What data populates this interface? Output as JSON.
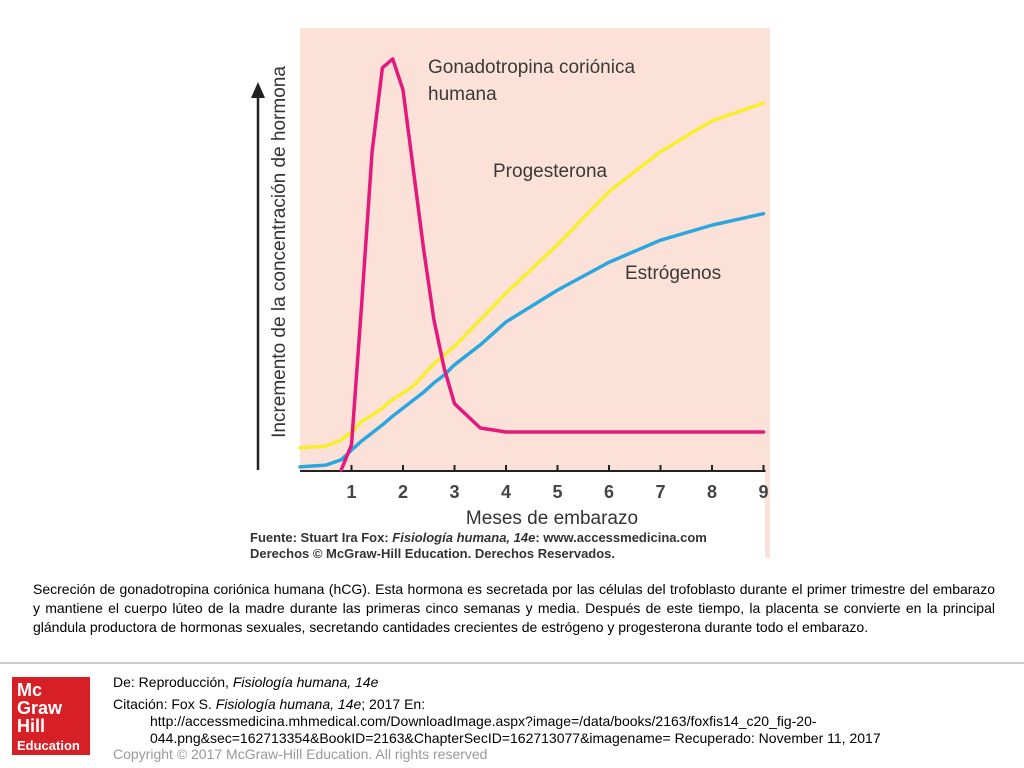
{
  "chart_data": {
    "type": "line",
    "xlabel": "Meses de embarazo",
    "ylabel": "Incremento de la concentración de hormona",
    "x": [
      0,
      0.5,
      0.8,
      1,
      1.2,
      1.4,
      1.6,
      1.8,
      2,
      2.2,
      2.4,
      2.6,
      2.8,
      3,
      3.5,
      4,
      5,
      6,
      7,
      8,
      9
    ],
    "xlim": [
      0,
      9
    ],
    "xticks": [
      1,
      2,
      3,
      4,
      5,
      6,
      7,
      8,
      9
    ],
    "ylim": [
      0,
      100
    ],
    "series": [
      {
        "name": "Gonadotropina coriónica humana",
        "color": "#e5187e",
        "values": [
          null,
          null,
          0,
          5.7,
          38,
          72,
          91,
          93,
          86,
          68,
          50,
          34,
          23,
          15,
          9.5,
          8.6,
          8.6,
          8.6,
          8.6,
          8.6,
          8.6
        ]
      },
      {
        "name": "Progesterona",
        "color": "#f7ee2c",
        "values": [
          5,
          5.4,
          6.8,
          8.6,
          11,
          12.4,
          14,
          16,
          17.4,
          19,
          21.5,
          24,
          26,
          28,
          34,
          40,
          51,
          63,
          72,
          79,
          83
        ]
      },
      {
        "name": "Estrógenos",
        "color": "#2ba6de",
        "values": [
          0.7,
          1.1,
          2.3,
          4.5,
          6.6,
          8.4,
          10.2,
          12.2,
          14,
          15.8,
          17.6,
          19.7,
          21.5,
          23.8,
          28.3,
          33.5,
          40.7,
          47,
          52,
          55.4,
          58
        ]
      }
    ]
  },
  "source": {
    "prefix": "Fuente: Stuart Ira Fox: ",
    "book": "Fisiología humana, 14e",
    "suffix": ": www.accessmedicina.com",
    "rights": "Derechos © McGraw-Hill Education. Derechos Reservados."
  },
  "caption": "Secreción de gonadotropina coriónica humana (hCG). Esta hormona es secretada por las células del trofoblasto durante el primer trimestre del embarazo y mantiene el cuerpo lúteo de la madre durante las primeras cinco semanas y media. Después de este tiempo, la placenta se convierte en la principal glándula productora de hormonas sexuales, secretando cantidades crecientes de estrógeno y progesterona durante todo el embarazo.",
  "footer": {
    "from_prefix": "De: Reproducción, ",
    "from_book": "Fisiología humana, 14e",
    "citation_prefix": "Citación: Fox S. ",
    "citation_book": "Fisiología humana, 14e",
    "citation_suffix": "; 2017 En:",
    "url1": "http://accessmedicina.mhmedical.com/DownloadImage.aspx?image=/data/books/2163/foxfis14_c20_fig-20-",
    "url2": "044.png&sec=162713354&BookID=2163&ChapterSecID=162713077&imagename= Recuperado: November 11, 2017",
    "copyright": "Copyright © 2017 McGraw-Hill Education. All rights reserved"
  },
  "logo": [
    "Mc",
    "Graw",
    "Hill",
    "Education"
  ]
}
